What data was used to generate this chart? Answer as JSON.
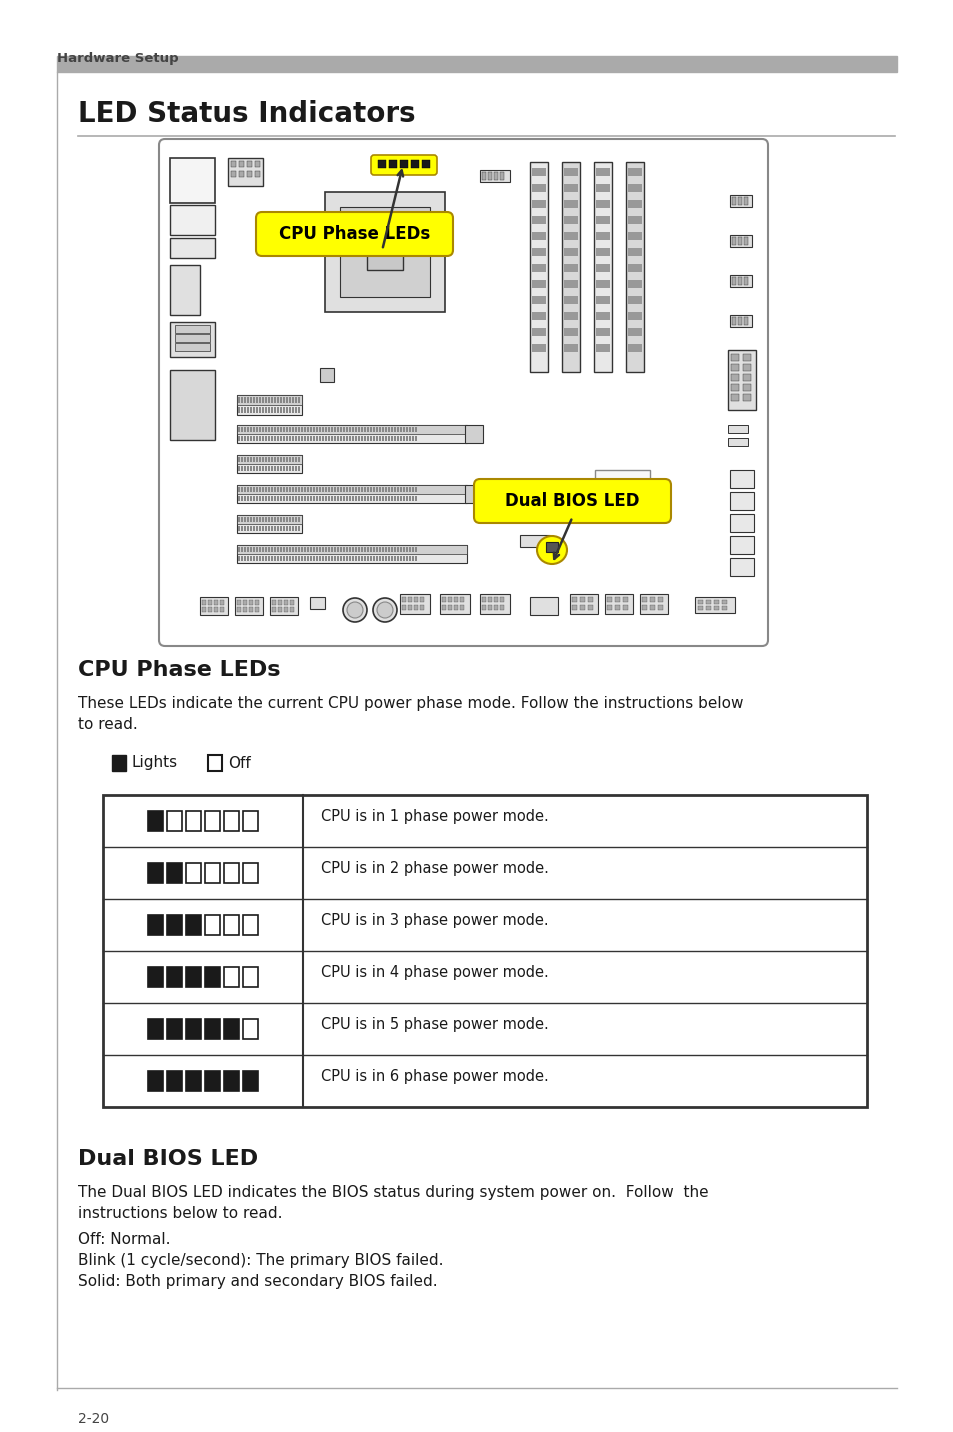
{
  "page_bg": "#ffffff",
  "header_text": "Hardware Setup",
  "header_bar_color": "#999999",
  "title": "LED Status Indicators",
  "section1_title": "CPU Phase LEDs",
  "section1_body_line1": "These LEDs indicate the current CPU power phase mode. Follow the instructions below",
  "section1_body_line2": "to read.",
  "legend_lights": "Lights",
  "legend_off": "Off",
  "table_rows": [
    {
      "leds_on": 1,
      "leds_off": 5,
      "desc": "CPU is in 1 phase power mode."
    },
    {
      "leds_on": 2,
      "leds_off": 4,
      "desc": "CPU is in 2 phase power mode."
    },
    {
      "leds_on": 3,
      "leds_off": 3,
      "desc": "CPU is in 3 phase power mode."
    },
    {
      "leds_on": 4,
      "leds_off": 2,
      "desc": "CPU is in 4 phase power mode."
    },
    {
      "leds_on": 5,
      "leds_off": 1,
      "desc": "CPU is in 5 phase power mode."
    },
    {
      "leds_on": 6,
      "leds_off": 0,
      "desc": "CPU is in 6 phase power mode."
    }
  ],
  "section2_title": "Dual BIOS LED",
  "section2_body_line1": "The Dual BIOS LED indicates the BIOS status during system power on.  Follow  the",
  "section2_body_line2": "instructions below to read.",
  "section2_body3": "Off: Normal.",
  "section2_body4": "Blink (1 cycle/second): The primary BIOS failed.",
  "section2_body5": "Solid: Both primary and secondary BIOS failed.",
  "footer_text": "2-20",
  "led_on_color": "#1a1a1a",
  "led_off_color": "#ffffff",
  "led_border_color": "#1a1a1a",
  "table_border_color": "#1a1a1a",
  "title_color": "#1a1a1a",
  "body_color": "#1a1a1a",
  "section_title_color": "#1a1a1a",
  "header_text_color": "#444444",
  "yellow_label_bg": "#ffff00",
  "yellow_label_text": "#000000",
  "mb_bg": "#ffffff",
  "mb_border": "#888888",
  "mb_line": "#333333",
  "mb_fill": "#e8e8e8"
}
